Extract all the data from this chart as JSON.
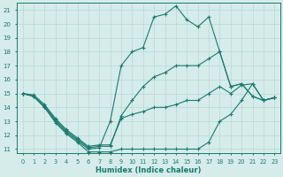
{
  "xlabel": "Humidex (Indice chaleur)",
  "x": [
    0,
    1,
    2,
    3,
    4,
    5,
    6,
    7,
    8,
    9,
    10,
    11,
    12,
    13,
    14,
    15,
    16,
    17,
    18,
    19,
    20,
    21,
    22,
    23
  ],
  "line1": [
    15.0,
    14.8,
    14.0,
    13.0,
    12.2,
    11.6,
    11.0,
    11.1,
    13.0,
    17.0,
    18.0,
    18.3,
    20.5,
    20.7,
    21.3,
    20.3,
    19.8,
    20.5,
    18.0,
    15.5,
    15.7,
    14.8,
    14.5,
    14.7
  ],
  "line2": [
    15.0,
    14.8,
    14.1,
    13.1,
    12.3,
    11.7,
    11.1,
    11.2,
    11.2,
    13.4,
    14.5,
    15.5,
    16.2,
    16.5,
    17.0,
    17.0,
    17.0,
    17.5,
    18.0,
    15.5,
    15.7,
    14.8,
    14.5,
    14.7
  ],
  "line3": [
    15.0,
    14.9,
    14.2,
    13.2,
    12.4,
    11.8,
    11.2,
    11.3,
    11.3,
    13.2,
    13.5,
    13.7,
    14.0,
    14.0,
    14.2,
    14.5,
    14.5,
    15.0,
    15.5,
    15.0,
    15.6,
    15.7,
    14.5,
    14.7
  ],
  "line4": [
    15.0,
    14.8,
    14.0,
    12.9,
    12.1,
    11.5,
    10.8,
    10.8,
    10.8,
    11.0,
    11.0,
    11.0,
    11.0,
    11.0,
    11.0,
    11.0,
    11.0,
    11.5,
    13.0,
    13.5,
    14.5,
    15.7,
    14.5,
    14.7
  ],
  "color": "#1a7a6e",
  "bg_color": "#d5ecea",
  "grid_color": "#b8d8d4",
  "ylim": [
    10.7,
    21.5
  ],
  "yticks": [
    11,
    12,
    13,
    14,
    15,
    16,
    17,
    18,
    19,
    20,
    21
  ],
  "xticks": [
    0,
    1,
    2,
    3,
    4,
    5,
    6,
    7,
    8,
    9,
    10,
    11,
    12,
    13,
    14,
    15,
    16,
    17,
    18,
    19,
    20,
    21,
    22,
    23
  ]
}
